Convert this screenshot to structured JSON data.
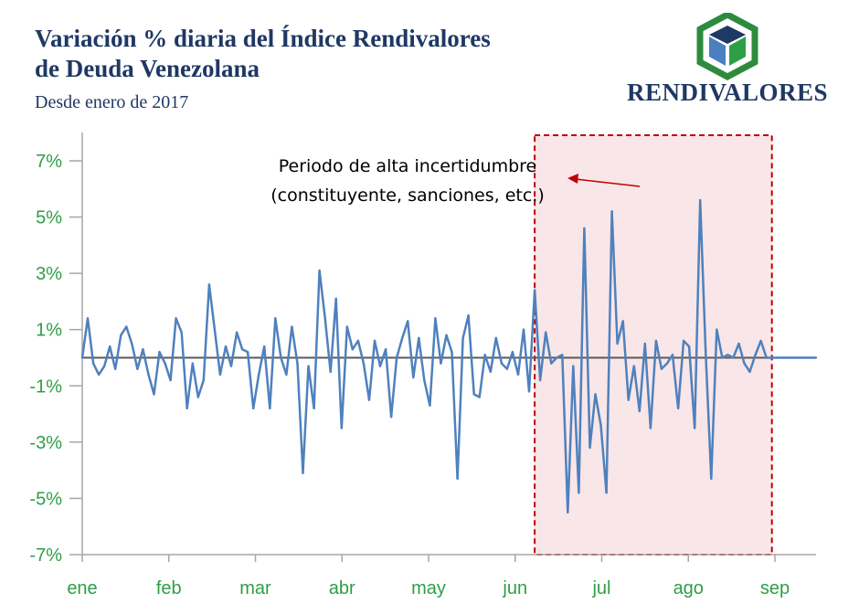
{
  "header": {
    "title_line1": "Variación % diaria del Índice Rendivalores",
    "title_line2": "de Deuda Venezolana",
    "subtitle": "Desde enero de 2017"
  },
  "logo": {
    "text": "RENDIVALORES",
    "colors": {
      "frame": "#2e8b3e",
      "top": "#1f3864",
      "left": "#4a7fc0",
      "right": "#2e9e46"
    }
  },
  "colors": {
    "line": "#4f81bd",
    "zero_line": "#595959",
    "axis": "#a6a6a6",
    "tick_text": "#2e9e46",
    "highlight_fill": "#f9e6e8",
    "highlight_border": "#c00000",
    "arrow": "#c00000"
  },
  "chart_data": {
    "type": "line",
    "ylim": [
      -7,
      7
    ],
    "yticks": [
      "7%",
      "5%",
      "3%",
      "1%",
      "-1%",
      "-3%",
      "-5%",
      "-7%"
    ],
    "ytick_values": [
      7,
      5,
      3,
      1,
      -1,
      -3,
      -5,
      -7
    ],
    "xticks": [
      "ene",
      "feb",
      "mar",
      "abr",
      "may",
      "jun",
      "jul",
      "ago",
      "sep"
    ],
    "xlabel": "",
    "ylabel": "",
    "grid": false,
    "highlight": {
      "x_start": 164,
      "x_end": 250,
      "label_line1": "Periodo de alta incertidumbre",
      "label_line2": "(constituyente, sanciones, etc.)"
    },
    "series": [
      {
        "x": [
          0,
          2,
          4,
          6,
          8,
          10,
          12,
          14,
          16,
          18,
          20,
          22,
          24,
          26,
          28,
          30,
          32,
          34,
          36,
          38,
          40,
          42,
          44,
          46,
          48,
          50,
          52,
          54,
          56,
          58,
          60,
          62,
          64,
          66,
          68,
          70,
          72,
          74,
          76,
          78,
          80,
          82,
          84,
          86,
          88,
          90,
          92,
          94,
          96,
          98,
          100,
          102,
          104,
          106,
          108,
          110,
          112,
          114,
          116,
          118,
          120,
          122,
          124,
          126,
          128,
          130,
          132,
          134,
          136,
          138,
          140,
          142,
          144,
          146,
          148,
          150,
          152,
          154,
          156,
          158,
          160,
          162,
          164,
          166,
          168,
          170,
          172,
          174,
          176,
          178,
          180,
          182,
          184,
          186,
          188,
          190,
          192,
          194,
          196,
          198,
          200,
          202,
          204,
          206,
          208,
          210,
          212,
          214,
          216,
          218,
          220,
          222,
          224,
          226,
          228,
          230,
          232,
          234,
          236,
          238,
          240,
          242,
          244,
          246,
          248,
          250,
          252,
          254,
          256,
          258,
          260,
          262,
          264,
          266
        ],
        "values": [
          0,
          1.4,
          -0.2,
          -0.6,
          -0.3,
          0.4,
          -0.4,
          0.8,
          1.1,
          0.5,
          -0.4,
          0.3,
          -0.6,
          -1.3,
          0.2,
          -0.2,
          -0.8,
          1.4,
          0.9,
          -1.8,
          -0.2,
          -1.4,
          -0.8,
          2.6,
          1.0,
          -0.6,
          0.4,
          -0.3,
          0.9,
          0.3,
          0.2,
          -1.8,
          -0.6,
          0.4,
          -1.8,
          1.4,
          0.0,
          -0.6,
          1.1,
          -0.2,
          -4.1,
          -0.3,
          -1.8,
          3.1,
          1.4,
          -0.5,
          2.1,
          -2.5,
          1.1,
          0.3,
          0.6,
          -0.2,
          -1.5,
          0.6,
          -0.3,
          0.3,
          -2.1,
          0.0,
          0.7,
          1.3,
          -0.7,
          0.7,
          -0.8,
          -1.7,
          1.4,
          -0.2,
          0.8,
          0.2,
          -4.3,
          0.7,
          1.5,
          -1.3,
          -1.4,
          0.1,
          -0.5,
          0.7,
          -0.2,
          -0.4,
          0.2,
          -0.6,
          1.0,
          -1.2,
          2.4,
          -0.8,
          0.9,
          -0.2,
          0.0,
          0.1,
          -5.5,
          -0.3,
          -4.8,
          4.6,
          -3.2,
          -1.3,
          -2.4,
          -4.8,
          5.2,
          0.5,
          1.3,
          -1.5,
          -0.3,
          -1.9,
          0.5,
          -2.5,
          0.6,
          -0.4,
          -0.2,
          0.1,
          -1.8,
          0.6,
          0.4,
          -2.5,
          5.6,
          0.2,
          -4.3,
          1.0,
          0.0,
          0.1,
          0.0,
          0.5,
          -0.2,
          -0.5,
          0.1,
          0.6,
          0.0,
          0.0,
          0.0,
          0.0,
          0.0,
          0.0,
          0.0,
          0.0,
          0.0,
          0.0
        ]
      }
    ]
  }
}
